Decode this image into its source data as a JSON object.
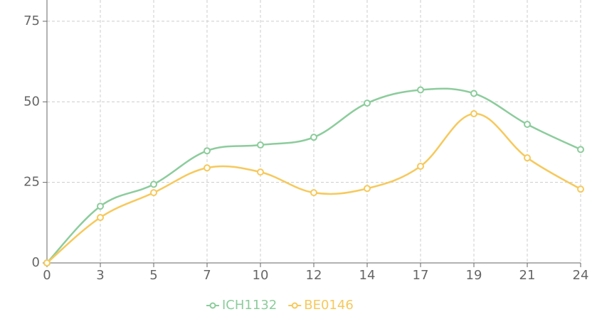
{
  "chart_data": {
    "type": "line",
    "categories": [
      "0",
      "3",
      "5",
      "7",
      "10",
      "12",
      "14",
      "17",
      "19",
      "21",
      "24"
    ],
    "series": [
      {
        "name": "ICH1132",
        "color": "#8ccc9c",
        "values": [
          0,
          17.6,
          24.4,
          34.8,
          36.6,
          39,
          49.6,
          53.7,
          52.6,
          43,
          35.2
        ]
      },
      {
        "name": "BE0146",
        "color": "#f6c95c",
        "values": [
          0,
          14.1,
          21.8,
          29.5,
          28.2,
          21.8,
          23.1,
          30,
          46.3,
          32.6,
          22.9
        ]
      }
    ],
    "ylim": [
      0,
      81.6
    ],
    "yticks": [
      0,
      25,
      50,
      75
    ],
    "grid": true,
    "legend": "bottom"
  }
}
